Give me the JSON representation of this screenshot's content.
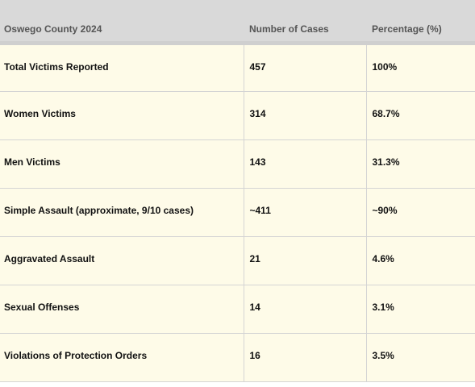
{
  "table": {
    "header": [
      "Oswego County 2024",
      "Number of Cases",
      "Percentage (%)"
    ],
    "rows": [
      [
        "Total Victims Reported",
        "457",
        "100%"
      ],
      [
        "Women Victims",
        "314",
        "68.7%"
      ],
      [
        "Men Victims",
        "143",
        "31.3%"
      ],
      [
        "Simple Assault (approximate, 9/10 cases)",
        "~411",
        "~90%"
      ],
      [
        "Aggravated Assault",
        "21",
        "4.6%"
      ],
      [
        "Sexual Offenses",
        "14",
        "3.1%"
      ],
      [
        "Violations of Protection Orders",
        "16",
        "3.5%"
      ]
    ]
  }
}
